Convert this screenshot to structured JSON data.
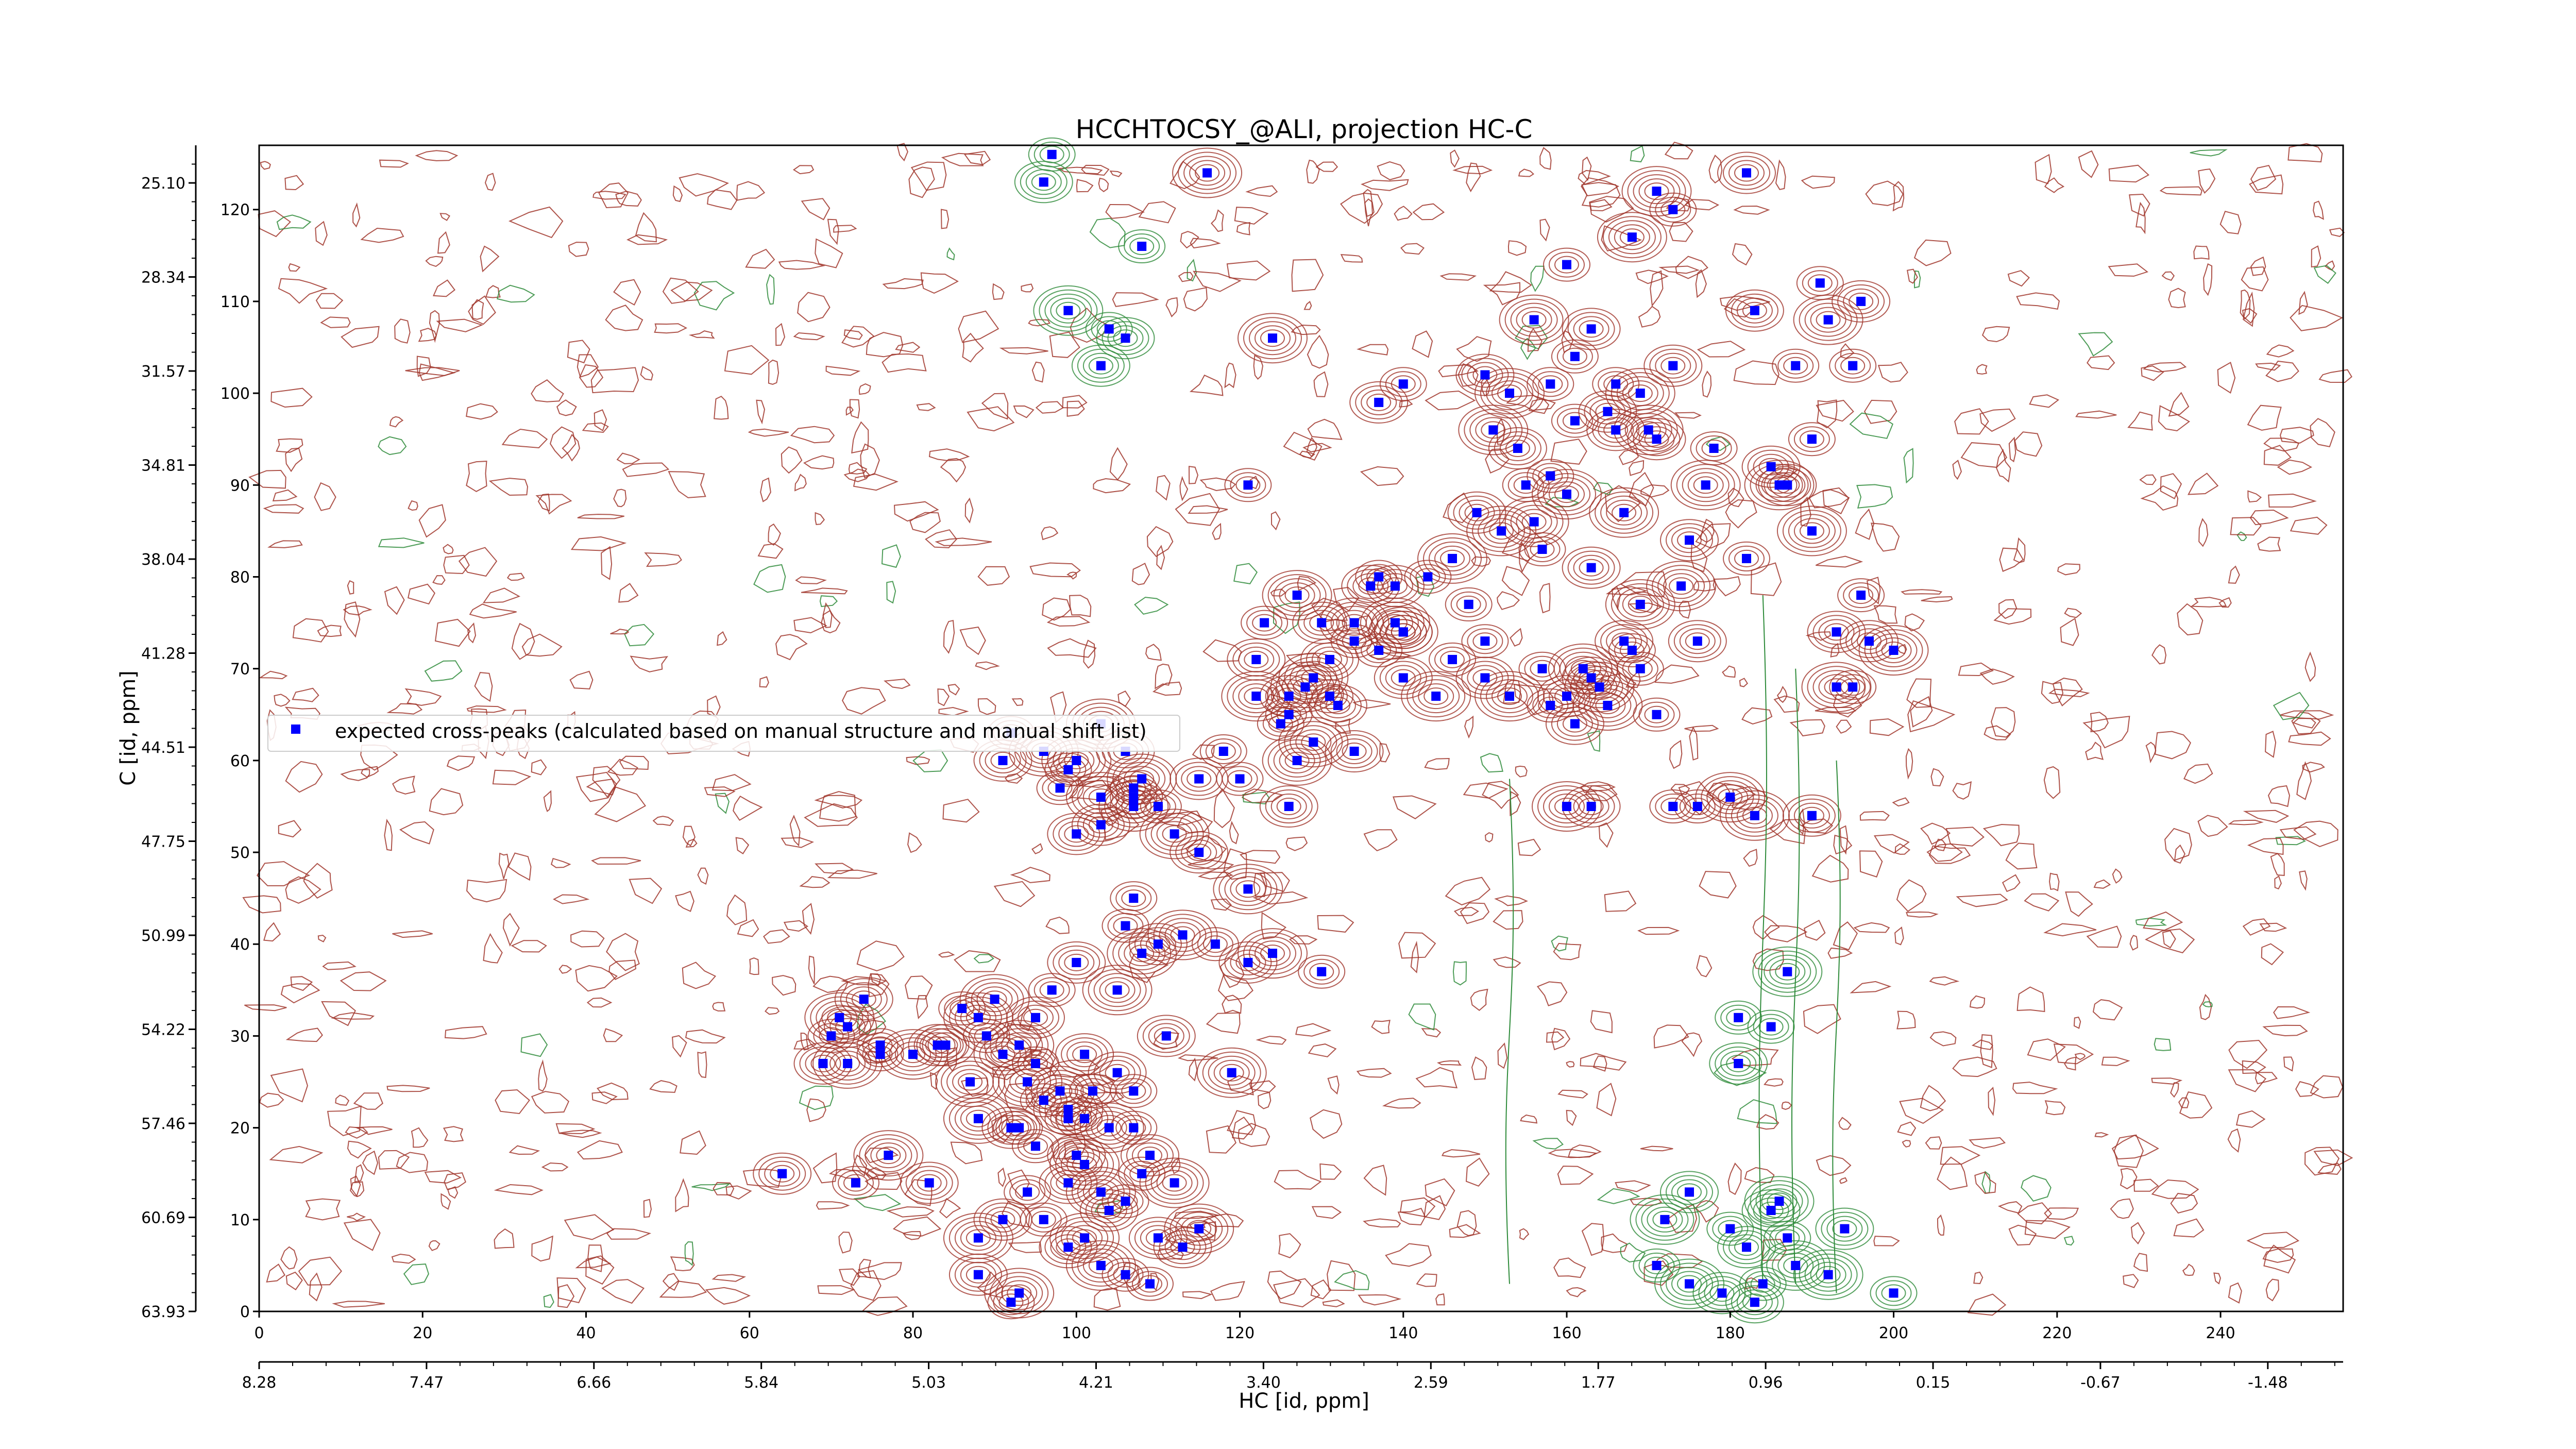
{
  "chart_data": {
    "type": "scatter",
    "title": "HCCHTOCSY_@ALI, projection HC-C",
    "xlabel": "HC [id, ppm]",
    "ylabel": "C [id, ppm]",
    "xlim": [
      0,
      255
    ],
    "ylim": [
      0,
      127
    ],
    "x_ticks": [
      "0",
      "20",
      "40",
      "60",
      "80",
      "100",
      "120",
      "140",
      "160",
      "180",
      "200",
      "220",
      "240"
    ],
    "x_ppm_ticks": [
      "8.28",
      "7.47",
      "6.66",
      "5.84",
      "5.03",
      "4.21",
      "3.40",
      "2.59",
      "1.77",
      "0.96",
      "0.15",
      "-0.67",
      "-1.48"
    ],
    "y_ticks": [
      "0",
      "10",
      "20",
      "30",
      "40",
      "50",
      "60",
      "70",
      "80",
      "90",
      "100",
      "110",
      "120"
    ],
    "y_ppm_ticks": [
      "63.93",
      "60.69",
      "57.46",
      "54.22",
      "50.99",
      "47.75",
      "44.51",
      "41.28",
      "38.04",
      "34.81",
      "31.57",
      "28.34",
      "25.10"
    ],
    "legend": {
      "placement": "center-left",
      "entries": [
        "expected cross-peaks (calculated based on manual structure and manual shift list)"
      ]
    },
    "series": [
      {
        "name": "expected cross-peaks (calculated based on manual structure and manual shift list)",
        "color": "#0000ff",
        "points": [
          [
            97,
            126
          ],
          [
            96,
            123
          ],
          [
            116,
            124
          ],
          [
            108,
            116
          ],
          [
            106,
            106
          ],
          [
            99,
            109
          ],
          [
            104,
            107
          ],
          [
            103,
            103
          ],
          [
            171,
            122
          ],
          [
            173,
            120
          ],
          [
            182,
            124
          ],
          [
            168,
            117
          ],
          [
            160,
            114
          ],
          [
            163,
            107
          ],
          [
            156,
            108
          ],
          [
            161,
            104
          ],
          [
            150,
            102
          ],
          [
            153,
            100
          ],
          [
            158,
            101
          ],
          [
            165,
            98
          ],
          [
            170,
            96
          ],
          [
            178,
            94
          ],
          [
            185,
            92
          ],
          [
            177,
            90
          ],
          [
            191,
            112
          ],
          [
            183,
            109
          ],
          [
            192,
            108
          ],
          [
            188,
            103
          ],
          [
            173,
            103
          ],
          [
            169,
            100
          ],
          [
            166,
            101
          ],
          [
            171,
            95
          ],
          [
            160,
            89
          ],
          [
            155,
            90
          ],
          [
            149,
            87
          ],
          [
            152,
            85
          ],
          [
            157,
            83
          ],
          [
            163,
            81
          ],
          [
            146,
            82
          ],
          [
            143,
            80
          ],
          [
            136,
            79
          ],
          [
            139,
            75
          ],
          [
            134,
            73
          ],
          [
            131,
            71
          ],
          [
            128,
            68
          ],
          [
            126,
            65
          ],
          [
            132,
            66
          ],
          [
            129,
            62
          ],
          [
            137,
            72
          ],
          [
            140,
            69
          ],
          [
            144,
            67
          ],
          [
            146,
            71
          ],
          [
            140,
            74
          ],
          [
            127,
            78
          ],
          [
            123,
            75
          ],
          [
            122,
            71
          ],
          [
            122,
            67
          ],
          [
            125,
            64
          ],
          [
            134,
            61
          ],
          [
            140,
            74
          ],
          [
            148,
            77
          ],
          [
            150,
            69
          ],
          [
            153,
            67
          ],
          [
            157,
            70
          ],
          [
            160,
            67
          ],
          [
            164,
            68
          ],
          [
            168,
            72
          ],
          [
            176,
            73
          ],
          [
            174,
            79
          ],
          [
            158,
            66
          ],
          [
            161,
            64
          ],
          [
            162,
            70
          ],
          [
            150,
            73
          ],
          [
            126,
            55
          ],
          [
            127,
            60
          ],
          [
            120,
            58
          ],
          [
            115,
            58
          ],
          [
            112,
            52
          ],
          [
            110,
            55
          ],
          [
            107,
            56
          ],
          [
            103,
            56
          ],
          [
            98,
            57
          ],
          [
            100,
            52
          ],
          [
            96,
            61
          ],
          [
            92,
            63
          ],
          [
            91,
            60
          ],
          [
            103,
            64
          ],
          [
            107,
            57
          ],
          [
            115,
            50
          ],
          [
            113,
            41
          ],
          [
            117,
            40
          ],
          [
            121,
            38
          ],
          [
            124,
            39
          ],
          [
            130,
            37
          ],
          [
            100,
            38
          ],
          [
            105,
            35
          ],
          [
            97,
            35
          ],
          [
            95,
            32
          ],
          [
            90,
            34
          ],
          [
            86,
            33
          ],
          [
            83,
            29
          ],
          [
            80,
            28
          ],
          [
            76,
            29
          ],
          [
            72,
            31
          ],
          [
            71,
            32
          ],
          [
            70,
            30
          ],
          [
            69,
            27
          ],
          [
            93,
            29
          ],
          [
            95,
            27
          ],
          [
            101,
            28
          ],
          [
            98,
            24
          ],
          [
            102,
            24
          ],
          [
            105,
            26
          ],
          [
            99,
            22
          ],
          [
            95,
            18
          ],
          [
            92,
            20
          ],
          [
            88,
            21
          ],
          [
            94,
            13
          ],
          [
            99,
            14
          ],
          [
            103,
            13
          ],
          [
            108,
            15
          ],
          [
            91,
            10
          ],
          [
            88,
            8
          ],
          [
            96,
            10
          ],
          [
            99,
            7
          ],
          [
            103,
            5
          ],
          [
            106,
            4
          ],
          [
            110,
            8
          ],
          [
            115,
            9
          ],
          [
            109,
            3
          ],
          [
            88,
            4
          ],
          [
            93,
            2
          ],
          [
            92,
            1
          ],
          [
            82,
            14
          ],
          [
            77,
            17
          ],
          [
            73,
            14
          ],
          [
            64,
            15
          ],
          [
            88,
            32
          ],
          [
            89,
            30
          ],
          [
            91,
            28
          ],
          [
            94,
            25
          ],
          [
            96,
            23
          ],
          [
            101,
            21
          ],
          [
            104,
            20
          ],
          [
            107,
            20
          ],
          [
            109,
            17
          ],
          [
            119,
            26
          ],
          [
            107,
            24
          ],
          [
            111,
            30
          ],
          [
            121,
            46
          ],
          [
            181,
            32
          ],
          [
            181,
            27
          ],
          [
            187,
            37
          ],
          [
            185,
            31
          ],
          [
            175,
            13
          ],
          [
            172,
            10
          ],
          [
            180,
            9
          ],
          [
            182,
            7
          ],
          [
            188,
            5
          ],
          [
            184,
            3
          ],
          [
            179,
            2
          ],
          [
            175,
            3
          ],
          [
            171,
            5
          ],
          [
            183,
            1
          ],
          [
            186,
            12
          ],
          [
            187,
            8
          ],
          [
            185,
            11
          ],
          [
            192,
            4
          ],
          [
            200,
            2
          ],
          [
            194,
            9
          ],
          [
            180,
            56
          ],
          [
            173,
            55
          ],
          [
            190,
            54
          ],
          [
            183,
            54
          ],
          [
            176,
            55
          ],
          [
            163,
            55
          ],
          [
            160,
            55
          ],
          [
            190,
            95
          ],
          [
            187,
            90
          ],
          [
            190,
            85
          ],
          [
            196,
            78
          ],
          [
            193,
            74
          ],
          [
            193,
            68
          ],
          [
            195,
            68
          ],
          [
            167,
            73
          ],
          [
            169,
            77
          ],
          [
            171,
            65
          ],
          [
            163,
            69
          ],
          [
            165,
            66
          ],
          [
            169,
            70
          ],
          [
            197,
            73
          ],
          [
            200,
            72
          ],
          [
            195,
            103
          ],
          [
            196,
            110
          ],
          [
            186,
            90
          ],
          [
            182,
            82
          ],
          [
            175,
            84
          ],
          [
            167,
            87
          ],
          [
            158,
            91
          ],
          [
            154,
            94
          ],
          [
            151,
            96
          ],
          [
            161,
            97
          ],
          [
            166,
            96
          ],
          [
            156,
            86
          ],
          [
            140,
            101
          ],
          [
            137,
            99
          ],
          [
            124,
            106
          ],
          [
            121,
            90
          ],
          [
            126,
            67
          ],
          [
            129,
            69
          ],
          [
            131,
            67
          ],
          [
            130,
            75
          ],
          [
            134,
            75
          ],
          [
            137,
            80
          ],
          [
            139,
            79
          ],
          [
            108,
            58
          ],
          [
            118,
            61
          ],
          [
            106,
            61
          ],
          [
            100,
            60
          ],
          [
            99,
            59
          ],
          [
            103,
            53
          ],
          [
            107,
            55
          ],
          [
            106,
            42
          ],
          [
            110,
            40
          ],
          [
            108,
            39
          ],
          [
            107,
            45
          ],
          [
            74,
            34
          ],
          [
            72,
            27
          ],
          [
            76,
            28
          ],
          [
            84,
            29
          ],
          [
            87,
            25
          ],
          [
            99,
            21
          ],
          [
            100,
            17
          ],
          [
            101,
            16
          ],
          [
            93,
            20
          ],
          [
            104,
            11
          ],
          [
            101,
            8
          ],
          [
            106,
            12
          ],
          [
            113,
            7
          ],
          [
            112,
            14
          ]
        ]
      }
    ],
    "contour_colors": {
      "positive": "#a0352a",
      "negative": "#2e8b3a"
    }
  }
}
